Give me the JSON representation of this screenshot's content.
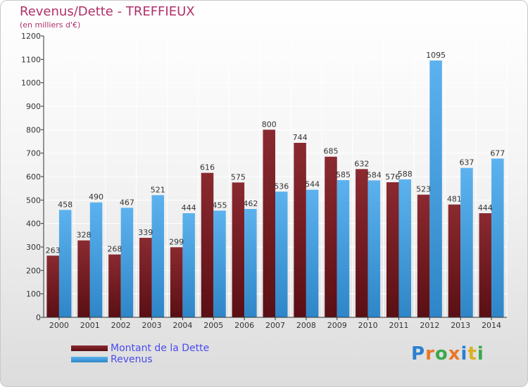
{
  "title": "Revenus/Dette - TREFFIEUX",
  "subtitle": "(en milliers d'€)",
  "colors": {
    "dette": "#7a1f26",
    "revenus": "#4aa3e6",
    "title": "#b0306a",
    "legend_text": "#4a4af0"
  },
  "chart_data": {
    "type": "bar",
    "categories": [
      "2000",
      "2001",
      "2002",
      "2003",
      "2004",
      "2005",
      "2006",
      "2007",
      "2008",
      "2009",
      "2010",
      "2011",
      "2012",
      "2013",
      "2014"
    ],
    "series": [
      {
        "name": "Montant de la Dette",
        "values": [
          263,
          328,
          268,
          339,
          299,
          616,
          575,
          800,
          744,
          685,
          632,
          576,
          523,
          481,
          444
        ]
      },
      {
        "name": "Revenus",
        "values": [
          458,
          490,
          467,
          521,
          444,
          455,
          462,
          536,
          544,
          585,
          584,
          588,
          1095,
          637,
          677
        ]
      }
    ],
    "ylim": [
      0,
      1200
    ],
    "yticks": [
      0,
      100,
      200,
      300,
      400,
      500,
      600,
      700,
      800,
      900,
      1000,
      1100,
      1200
    ],
    "grid": true,
    "legend_position": "bottom-left"
  },
  "logo": {
    "letters": [
      "P",
      "r",
      "o",
      "x",
      "i",
      "t",
      "i"
    ],
    "colors": [
      "#2a7fd0",
      "#e8772a",
      "#3aa84a",
      "#e8772a",
      "#2a7fd0",
      "#d8b020",
      "#3aa84a"
    ]
  }
}
